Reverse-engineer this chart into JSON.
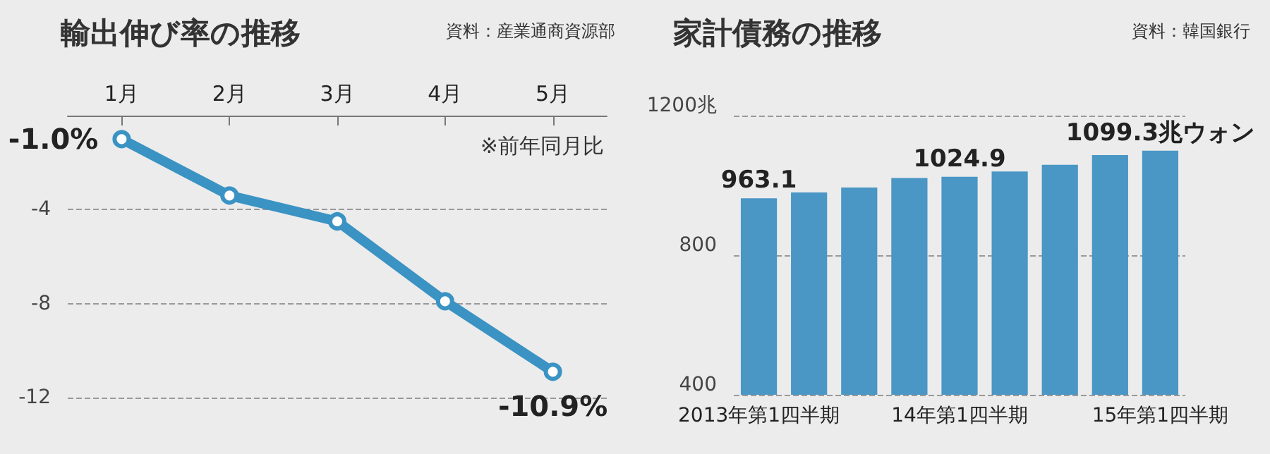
{
  "chart_data": [
    {
      "type": "line",
      "title": "輸出伸び率の推移",
      "annotations": [
        "資料：産業通商資源部",
        "※前年同月比"
      ],
      "categories": [
        "1月",
        "2月",
        "3月",
        "4月",
        "5月"
      ],
      "series": [
        {
          "color": "#3a93c3",
          "values": [
            -1.0,
            -3.4,
            -4.5,
            -7.9,
            -10.9
          ],
          "value_labels": [
            "-1.0%",
            null,
            null,
            null,
            "-10.9%"
          ]
        }
      ],
      "ylim": [
        -12,
        0
      ],
      "yticks": [
        -12,
        -8,
        -4
      ],
      "grid": "y",
      "marker": "circle",
      "line_style": "solid"
    },
    {
      "type": "bar",
      "title": "家計債務の推移",
      "annotations": [
        "資料：韓国銀行"
      ],
      "categories": [
        "2013年第1四半期",
        null,
        null,
        null,
        "14年第1四半期",
        null,
        null,
        null,
        "15年第1四半期"
      ],
      "series": [
        {
          "color": "#4a96c4",
          "values": [
            963.1,
            980,
            994,
            1021,
            1024.9,
            1040,
            1059,
            1087,
            1099.3
          ],
          "value_labels": [
            "963.1",
            null,
            null,
            null,
            "1024.9",
            null,
            null,
            null,
            "1099.3兆ウォン"
          ]
        }
      ],
      "ylim": [
        400,
        1200
      ],
      "yticks": [
        400,
        800,
        {
          "value": 1200,
          "label": "1200兆"
        }
      ],
      "grid": "y"
    }
  ]
}
